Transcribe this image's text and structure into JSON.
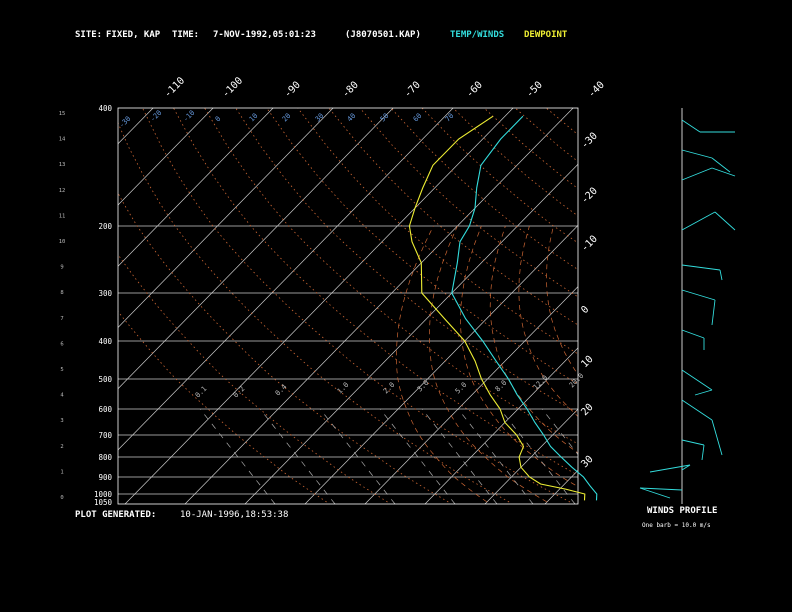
{
  "header": {
    "site_label": "SITE:",
    "site_value": "FIXED, KAP",
    "time_label": "TIME:",
    "time_value": "7-NOV-1992,05:01:23",
    "id_value": "(J8070501.KAP)",
    "legend_temp": "TEMP/WINDS",
    "legend_dew": "DEWPOINT",
    "temp_color": "#33dddd",
    "dew_color": "#eeee33"
  },
  "footer": {
    "plot_generated_label": "PLOT GENERATED:",
    "plot_generated_value": "10-JAN-1996,18:53:38",
    "winds_profile_label": "WINDS PROFILE",
    "barb_note": "One barb = 10.0 m/s"
  },
  "chart_data": {
    "type": "line",
    "title": "",
    "pressure_levels": [
      "400",
      "200",
      "300",
      "400",
      "500",
      "600",
      "700",
      "800",
      "900",
      "1000",
      "1050"
    ],
    "pressure_labels_right_isobar": [
      "200",
      "300",
      "400",
      "500",
      "600",
      "700",
      "800",
      "900",
      "1000",
      "1050"
    ],
    "altitude_ticks": [
      "15",
      "14",
      "13",
      "12",
      "11",
      "10",
      "9",
      "8",
      "7",
      "6",
      "5",
      "4",
      "3",
      "2",
      "1",
      "0"
    ],
    "skew_temp_labels_top": [
      "-110",
      "-100",
      "-90",
      "-80",
      "-70",
      "-60",
      "-50",
      "-40"
    ],
    "skew_temp_labels_right": [
      "-30",
      "-20",
      "-10",
      "0",
      "10",
      "20",
      "30"
    ],
    "dry_adiabat_labels": [
      "-30",
      "-20",
      "-10",
      "0",
      "10",
      "20",
      "30",
      "40",
      "50",
      "60",
      "70"
    ],
    "mixing_ratio_labels": [
      "0.1",
      "0.2",
      "0.4",
      "1.0",
      "2.0",
      "3.0",
      "5.0",
      "8.0",
      "12.0",
      "20.0"
    ],
    "series": [
      {
        "name": "TEMP/WINDS",
        "color": "#33dddd",
        "points": [
          [
            1040,
            8.0
          ],
          [
            1000,
            7.0
          ],
          [
            950,
            4.5
          ],
          [
            900,
            2.0
          ],
          [
            850,
            -1.5
          ],
          [
            800,
            -5.0
          ],
          [
            750,
            -8.5
          ],
          [
            700,
            -11.5
          ],
          [
            650,
            -15.0
          ],
          [
            600,
            -18.5
          ],
          [
            550,
            -22.5
          ],
          [
            500,
            -26.5
          ],
          [
            450,
            -31.5
          ],
          [
            400,
            -37.0
          ],
          [
            350,
            -43.5
          ],
          [
            300,
            -50.0
          ],
          [
            250,
            -54.0
          ],
          [
            220,
            -57.0
          ],
          [
            200,
            -58.0
          ],
          [
            180,
            -60.0
          ],
          [
            160,
            -63.0
          ],
          [
            140,
            -66.0
          ],
          [
            120,
            -67.0
          ],
          [
            105,
            -67.0
          ]
        ]
      },
      {
        "name": "DEWPOINT",
        "color": "#eeee33",
        "points": [
          [
            1040,
            6.0
          ],
          [
            1000,
            5.0
          ],
          [
            970,
            1.0
          ],
          [
            940,
            -4.0
          ],
          [
            900,
            -7.0
          ],
          [
            850,
            -10.0
          ],
          [
            800,
            -12.0
          ],
          [
            750,
            -13.0
          ],
          [
            700,
            -16.0
          ],
          [
            650,
            -20.0
          ],
          [
            600,
            -23.0
          ],
          [
            550,
            -27.0
          ],
          [
            500,
            -31.0
          ],
          [
            450,
            -35.0
          ],
          [
            400,
            -40.0
          ],
          [
            350,
            -47.0
          ],
          [
            300,
            -55.0
          ],
          [
            250,
            -60.0
          ],
          [
            220,
            -65.0
          ],
          [
            200,
            -68.0
          ],
          [
            180,
            -70.0
          ],
          [
            160,
            -72.0
          ],
          [
            140,
            -74.0
          ],
          [
            120,
            -74.0
          ],
          [
            105,
            -72.0
          ]
        ]
      }
    ]
  }
}
